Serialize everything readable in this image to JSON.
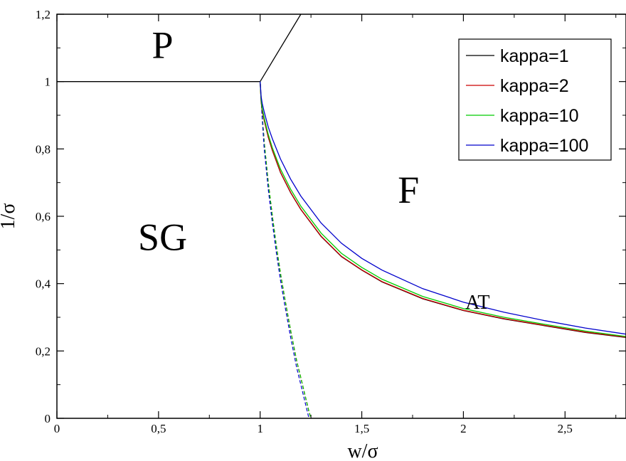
{
  "chart_data": {
    "type": "line",
    "xlabel": "w/σ",
    "ylabel": "1/σ",
    "xlim": [
      0,
      2.8
    ],
    "ylim": [
      0,
      1.2
    ],
    "x_ticks": [
      0,
      0.5,
      1,
      1.5,
      2,
      2.5
    ],
    "x_tick_labels": [
      "0",
      "0,5",
      "1",
      "1,5",
      "2",
      "2,5"
    ],
    "y_ticks": [
      0,
      0.2,
      0.4,
      0.6,
      0.8,
      1.0,
      1.2
    ],
    "y_tick_labels": [
      "0",
      "0,2",
      "0,4",
      "0,6",
      "0,8",
      "1",
      "1,2"
    ],
    "grid": false,
    "legend_position": "top-right",
    "region_labels": [
      {
        "text": "P",
        "x": 0.52,
        "y": 1.07,
        "size": "large"
      },
      {
        "text": "SG",
        "x": 0.52,
        "y": 0.5,
        "size": "large"
      },
      {
        "text": "F",
        "x": 1.73,
        "y": 0.64,
        "size": "large"
      },
      {
        "text": "AT",
        "x": 2.07,
        "y": 0.325,
        "size": "small"
      }
    ],
    "boundaries": [
      {
        "name": "P-SG",
        "color": "#000000",
        "style": "solid",
        "x": [
          0,
          1
        ],
        "y": [
          1,
          1
        ]
      },
      {
        "name": "P-F",
        "color": "#000000",
        "style": "solid",
        "x": [
          1,
          1.2
        ],
        "y": [
          1,
          1.2
        ]
      }
    ],
    "series": [
      {
        "name": "kappa=1",
        "color": "#000000",
        "ferro_line": {
          "x": [
            1.0,
            1.005,
            1.01,
            1.02,
            1.04,
            1.06,
            1.1,
            1.15,
            1.2,
            1.3,
            1.4,
            1.5,
            1.6,
            1.8,
            2.0,
            2.2,
            2.4,
            2.6,
            2.8
          ],
          "y": [
            1.0,
            0.94,
            0.915,
            0.885,
            0.835,
            0.795,
            0.73,
            0.67,
            0.62,
            0.54,
            0.48,
            0.44,
            0.405,
            0.355,
            0.32,
            0.295,
            0.275,
            0.255,
            0.24
          ]
        },
        "at_line": {
          "x": [
            1.0,
            1.01,
            1.02,
            1.04,
            1.06,
            1.08,
            1.1,
            1.12,
            1.15,
            1.18,
            1.2,
            1.22,
            1.24,
            1.25
          ],
          "y": [
            1.0,
            0.9,
            0.82,
            0.7,
            0.6,
            0.51,
            0.43,
            0.36,
            0.26,
            0.17,
            0.12,
            0.07,
            0.02,
            0.0
          ]
        }
      },
      {
        "name": "kappa=2",
        "color": "#cc0000",
        "ferro_line": {
          "x": [
            1.0,
            1.005,
            1.01,
            1.02,
            1.04,
            1.06,
            1.1,
            1.15,
            1.2,
            1.3,
            1.4,
            1.5,
            1.6,
            1.8,
            2.0,
            2.2,
            2.4,
            2.6,
            2.8
          ],
          "y": [
            1.0,
            0.94,
            0.915,
            0.886,
            0.836,
            0.796,
            0.731,
            0.671,
            0.621,
            0.541,
            0.481,
            0.441,
            0.406,
            0.356,
            0.321,
            0.296,
            0.276,
            0.256,
            0.241
          ]
        },
        "at_line": {
          "x": [
            1.0,
            1.01,
            1.02,
            1.04,
            1.06,
            1.08,
            1.1,
            1.12,
            1.15,
            1.18,
            1.2,
            1.22,
            1.24,
            1.25
          ],
          "y": [
            1.0,
            0.9,
            0.82,
            0.7,
            0.6,
            0.51,
            0.43,
            0.36,
            0.26,
            0.17,
            0.12,
            0.07,
            0.02,
            0.0
          ]
        }
      },
      {
        "name": "kappa=10",
        "color": "#00cc00",
        "ferro_line": {
          "x": [
            1.0,
            1.005,
            1.01,
            1.02,
            1.04,
            1.06,
            1.1,
            1.15,
            1.2,
            1.3,
            1.4,
            1.5,
            1.6,
            1.8,
            2.0,
            2.2,
            2.4,
            2.6,
            2.8
          ],
          "y": [
            1.0,
            0.945,
            0.92,
            0.892,
            0.843,
            0.803,
            0.74,
            0.68,
            0.63,
            0.55,
            0.49,
            0.448,
            0.413,
            0.362,
            0.326,
            0.3,
            0.279,
            0.259,
            0.243
          ]
        },
        "at_line": {
          "x": [
            1.0,
            1.01,
            1.02,
            1.04,
            1.06,
            1.08,
            1.1,
            1.12,
            1.15,
            1.18,
            1.2,
            1.22,
            1.24,
            1.25
          ],
          "y": [
            1.0,
            0.9,
            0.82,
            0.7,
            0.6,
            0.51,
            0.43,
            0.36,
            0.26,
            0.17,
            0.12,
            0.07,
            0.02,
            0.0
          ]
        }
      },
      {
        "name": "kappa=100",
        "color": "#0000cc",
        "ferro_line": {
          "x": [
            1.0,
            1.005,
            1.01,
            1.02,
            1.04,
            1.06,
            1.1,
            1.15,
            1.2,
            1.3,
            1.4,
            1.5,
            1.6,
            1.8,
            2.0,
            2.2,
            2.4,
            2.6,
            2.8
          ],
          "y": [
            1.0,
            0.955,
            0.935,
            0.91,
            0.865,
            0.83,
            0.77,
            0.71,
            0.66,
            0.58,
            0.52,
            0.475,
            0.44,
            0.385,
            0.345,
            0.315,
            0.29,
            0.268,
            0.25
          ]
        },
        "at_line": {
          "x": [
            1.0,
            1.01,
            1.02,
            1.04,
            1.06,
            1.08,
            1.1,
            1.12,
            1.15,
            1.18,
            1.2,
            1.22,
            1.24
          ],
          "y": [
            1.0,
            0.89,
            0.8,
            0.68,
            0.58,
            0.49,
            0.41,
            0.34,
            0.24,
            0.15,
            0.1,
            0.05,
            0.0
          ]
        }
      }
    ]
  }
}
